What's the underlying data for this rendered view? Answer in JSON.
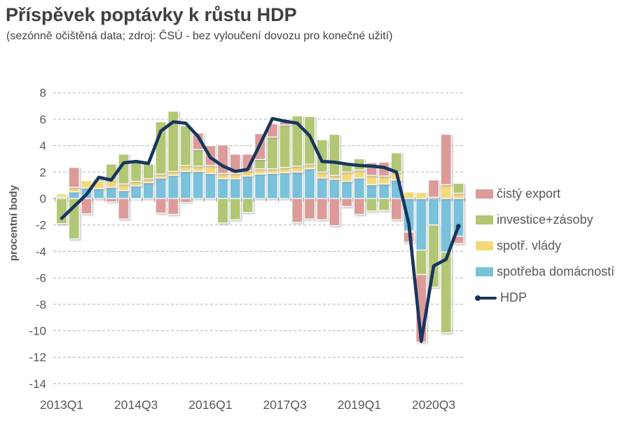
{
  "header": {
    "title": "Příspěvek poptávky k růstu HDP",
    "subtitle": "(sezónně očištěná data; zdroj: ČSÚ - bez vyloučení dovozu pro konečné užití)"
  },
  "colors": {
    "net_export": "#dc9b99",
    "investment": "#b2c773",
    "government": "#f4d97b",
    "households": "#7ac1db",
    "hdp_line": "#17365d",
    "gridline": "#b3b3b3",
    "zero_axis": "#8f8f8f",
    "axis_text": "#595959",
    "title_text": "#3f3f3f"
  },
  "chart_data": {
    "type": "bar",
    "subtype": "stacked-bars-with-line-overlay",
    "title": "Příspěvek poptávky k růstu HDP",
    "subtitle": "(sezónně očištěná data; zdroj: ČSÚ - bez vyloučení dovozu pro konečné užití)",
    "xlabel": "",
    "ylabel": "procentní body",
    "ylim": [
      -14,
      8
    ],
    "ytick_step": 2,
    "yticks": [
      8,
      6,
      4,
      2,
      0,
      -2,
      -4,
      -6,
      -8,
      -10,
      -12,
      -14
    ],
    "grid": "horizontal-dashed",
    "legend_position": "right",
    "x_axis_shown_labels": [
      "2013Q1",
      "2014Q3",
      "2016Q1",
      "2017Q3",
      "2019Q1",
      "2020Q3"
    ],
    "x_axis_label_every_n": 6,
    "categories": [
      "2013Q1",
      "2013Q2",
      "2013Q3",
      "2013Q4",
      "2014Q1",
      "2014Q2",
      "2014Q3",
      "2014Q4",
      "2015Q1",
      "2015Q2",
      "2015Q3",
      "2015Q4",
      "2016Q1",
      "2016Q2",
      "2016Q3",
      "2016Q4",
      "2017Q1",
      "2017Q2",
      "2017Q3",
      "2017Q4",
      "2018Q1",
      "2018Q2",
      "2018Q3",
      "2018Q4",
      "2019Q1",
      "2019Q2",
      "2019Q3",
      "2019Q4",
      "2020Q1",
      "2020Q2",
      "2020Q3",
      "2020Q4",
      "2021Q1"
    ],
    "series": [
      {
        "key": "households",
        "name": "spotřeba domácností",
        "color": "#7ac1db",
        "values": [
          0.1,
          0.5,
          0.8,
          0.75,
          0.85,
          0.6,
          0.95,
          1.2,
          1.55,
          1.75,
          2.05,
          2.05,
          1.9,
          1.5,
          1.5,
          1.7,
          1.85,
          1.9,
          1.95,
          2.0,
          2.25,
          1.55,
          1.45,
          1.3,
          1.55,
          1.05,
          1.1,
          1.4,
          -2.45,
          -3.9,
          -2.0,
          -4.05,
          -2.85
        ]
      },
      {
        "key": "government",
        "name": "spotř. vlády",
        "color": "#f4d97b",
        "values": [
          0.25,
          0.35,
          0.55,
          0.55,
          0.55,
          0.5,
          0.35,
          0.3,
          0.3,
          0.3,
          0.45,
          0.4,
          0.6,
          0.4,
          0.4,
          0.4,
          0.4,
          0.35,
          0.4,
          0.45,
          0.35,
          0.45,
          0.3,
          0.7,
          0.6,
          0.7,
          0.6,
          0.6,
          0.5,
          0.45,
          0.1,
          1.05,
          0.4
        ]
      },
      {
        "key": "investment",
        "name": "investice+zásoby",
        "color": "#b2c773",
        "values": [
          -1.9,
          -3.05,
          0.0,
          0.15,
          1.2,
          2.25,
          1.6,
          1.1,
          3.95,
          4.55,
          3.0,
          1.25,
          0.0,
          -1.85,
          -1.6,
          -1.05,
          0.7,
          2.4,
          3.2,
          3.8,
          3.6,
          2.45,
          3.1,
          0.55,
          0.85,
          -0.95,
          -0.9,
          1.45,
          -0.1,
          -1.85,
          -4.7,
          -6.1,
          0.75
        ]
      },
      {
        "key": "net_export",
        "name": "čistý export",
        "color": "#dc9b99",
        "values": [
          0.0,
          1.5,
          -1.15,
          0.05,
          -0.25,
          -1.55,
          -0.05,
          0.0,
          -1.1,
          -1.2,
          -0.3,
          1.25,
          1.5,
          2.15,
          1.45,
          1.25,
          1.95,
          1.0,
          0.25,
          -1.8,
          -1.55,
          -1.6,
          -2.05,
          -0.6,
          -1.2,
          0.95,
          1.05,
          -1.6,
          -0.75,
          -5.1,
          1.3,
          3.8,
          -0.55
        ]
      }
    ],
    "line": {
      "key": "hdp",
      "name": "HDP",
      "color": "#17365d",
      "values": [
        -1.5,
        -0.6,
        0.3,
        1.6,
        1.4,
        2.7,
        2.8,
        2.65,
        5.1,
        5.8,
        5.7,
        4.7,
        3.1,
        2.45,
        2.05,
        2.2,
        4.1,
        6.05,
        5.85,
        5.7,
        4.75,
        2.8,
        2.75,
        2.6,
        2.5,
        2.45,
        2.35,
        2.0,
        -1.9,
        -10.8,
        -5.1,
        -4.6,
        -2.1
      ]
    },
    "legend": {
      "items": [
        {
          "label": "čistý export",
          "color": "#dc9b99",
          "swatch": "box"
        },
        {
          "label": "investice+zásoby",
          "color": "#b2c773",
          "swatch": "box"
        },
        {
          "label": "spotř. vlády",
          "color": "#f4d97b",
          "swatch": "box"
        },
        {
          "label": "spotřeba domácností",
          "color": "#7ac1db",
          "swatch": "box"
        },
        {
          "label": "HDP",
          "color": "#17365d",
          "swatch": "line"
        }
      ]
    }
  }
}
